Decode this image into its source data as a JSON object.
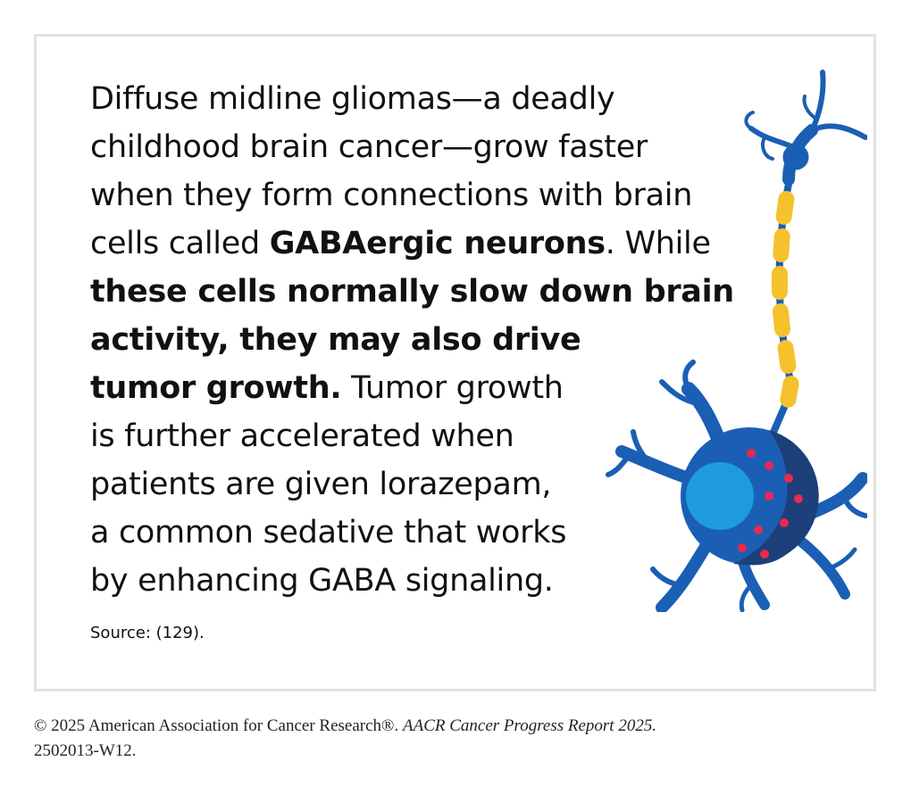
{
  "body": {
    "l1": "Diffuse midline gliomas—a deadly",
    "l2": "childhood brain cancer—grow faster",
    "l3": "when they form connections with brain",
    "l4_a": "cells called ",
    "l4_b": "GABAergic neurons",
    "l4_c": ". While",
    "l5": "these cells normally slow down brain",
    "l6": "activity, they may also drive",
    "l7_a": "tumor growth.",
    "l7_b": " Tumor growth",
    "l8": "is further accelerated when",
    "l9": "patients are given lorazepam,",
    "l10": "a common sedative that works",
    "l11": "by enhancing GABA signaling."
  },
  "source": "Source: (129).",
  "footer": {
    "copyright": "© 2025 American Association for Cancer Research®. ",
    "report": "AACR Cancer Progress Report 2025.",
    "code": "2502013-W12."
  },
  "colors": {
    "neuron_blue": "#1a5fb4",
    "nucleus": "#1e9be0",
    "dark_blue": "#1d3f7a",
    "myelin": "#f5c22e",
    "dots": "#e8294f"
  }
}
